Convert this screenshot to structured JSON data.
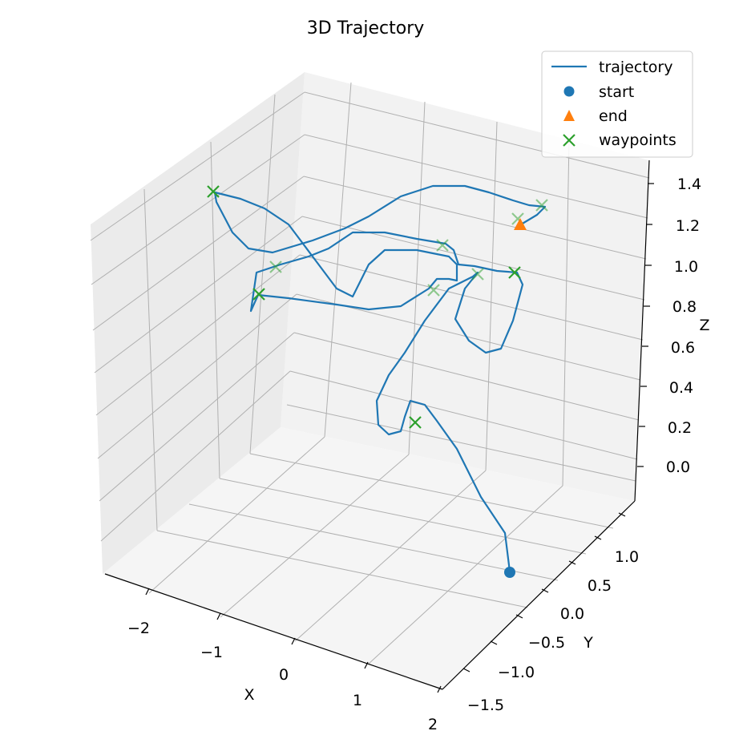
{
  "chart_data": {
    "type": "line3d",
    "title": "3D Trajectory",
    "axes": {
      "x": {
        "label": "X",
        "ticks": [
          "−2",
          "−1",
          "0",
          "1",
          "2"
        ],
        "range": [
          -2.5,
          2.0
        ]
      },
      "y": {
        "label": "Y",
        "ticks": [
          "−1.5",
          "−1.0",
          "−0.5",
          "0.0",
          "0.5",
          "1.0"
        ],
        "range": [
          -1.5,
          1.3
        ]
      },
      "z": {
        "label": "Z",
        "ticks": [
          "0.0",
          "0.2",
          "0.4",
          "0.6",
          "0.8",
          "1.0",
          "1.2",
          "1.4"
        ],
        "range": [
          -0.15,
          1.5
        ]
      }
    },
    "grid": true,
    "legend": {
      "placement": "top-right",
      "entries": [
        {
          "label": "trajectory",
          "marker": "line",
          "color": "#1f77b4"
        },
        {
          "label": "start",
          "marker": "circle",
          "color": "#1f77b4"
        },
        {
          "label": "end",
          "marker": "triangle",
          "color": "#ff7f0e"
        },
        {
          "label": "waypoints",
          "marker": "x",
          "color": "#2ca02c"
        }
      ]
    },
    "series": {
      "trajectory": {
        "color": "#1f77b4",
        "points_screen_approx": [
          [
            636,
            713
          ],
          [
            630,
            665
          ],
          [
            600,
            620
          ],
          [
            570,
            560
          ],
          [
            545,
            525
          ],
          [
            530,
            505
          ],
          [
            512,
            500
          ],
          [
            505,
            520
          ],
          [
            500,
            538
          ],
          [
            485,
            542
          ],
          [
            472,
            530
          ],
          [
            470,
            500
          ],
          [
            485,
            468
          ],
          [
            505,
            440
          ],
          [
            530,
            400
          ],
          [
            560,
            360
          ],
          [
            590,
            345
          ],
          [
            596,
            340
          ],
          [
            580,
            360
          ],
          [
            568,
            398
          ],
          [
            585,
            425
          ],
          [
            606,
            440
          ],
          [
            625,
            435
          ],
          [
            640,
            400
          ],
          [
            652,
            355
          ],
          [
            645,
            340
          ],
          [
            620,
            338
          ],
          [
            592,
            332
          ],
          [
            572,
            330
          ],
          [
            566,
            312
          ],
          [
            556,
            304
          ],
          [
            520,
            298
          ],
          [
            480,
            290
          ],
          [
            440,
            290
          ],
          [
            410,
            310
          ],
          [
            385,
            320
          ],
          [
            350,
            330
          ],
          [
            320,
            340
          ],
          [
            313,
            388
          ],
          [
            322,
            368
          ],
          [
            360,
            372
          ],
          [
            420,
            380
          ],
          [
            460,
            386
          ],
          [
            500,
            382
          ],
          [
            535,
            360
          ],
          [
            545,
            348
          ],
          [
            560,
            348
          ],
          [
            570,
            350
          ],
          [
            570,
            330
          ],
          [
            560,
            320
          ],
          [
            520,
            312
          ],
          [
            480,
            312
          ],
          [
            460,
            330
          ],
          [
            450,
            350
          ],
          [
            440,
            370
          ],
          [
            420,
            360
          ],
          [
            390,
            320
          ],
          [
            360,
            280
          ],
          [
            330,
            260
          ],
          [
            300,
            248
          ],
          [
            268,
            240
          ],
          [
            270,
            252
          ],
          [
            290,
            290
          ],
          [
            310,
            310
          ],
          [
            340,
            315
          ],
          [
            390,
            300
          ],
          [
            430,
            285
          ],
          [
            460,
            270
          ],
          [
            500,
            245
          ],
          [
            540,
            232
          ],
          [
            580,
            232
          ],
          [
            610,
            240
          ],
          [
            640,
            250
          ],
          [
            660,
            256
          ],
          [
            680,
            258
          ],
          [
            670,
            268
          ],
          [
            650,
            280
          ]
        ]
      },
      "start": {
        "marker": "circle",
        "color": "#1f77b4"
      },
      "end": {
        "marker": "triangle",
        "color": "#ff7f0e"
      },
      "waypoints": {
        "marker": "x",
        "color": "#2ca02c",
        "count": 10
      }
    }
  }
}
